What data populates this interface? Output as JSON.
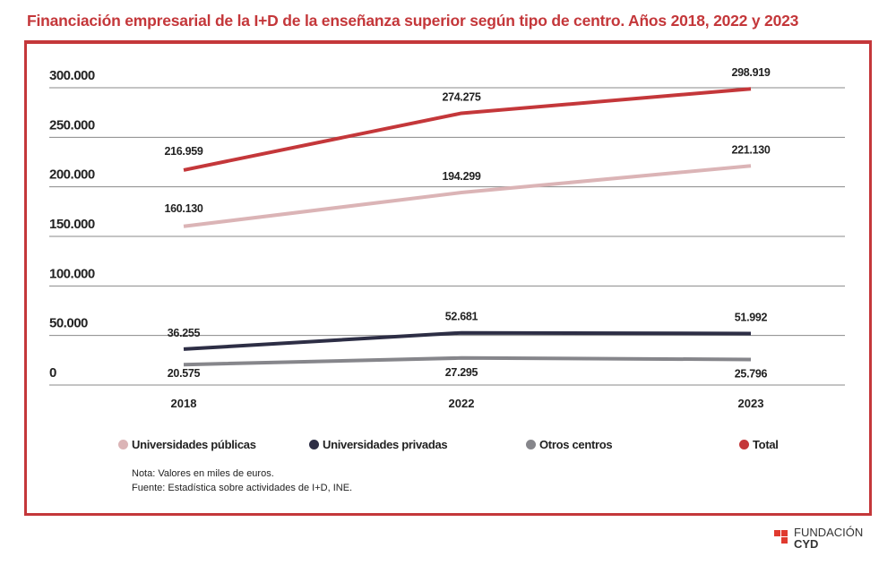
{
  "chart_data": {
    "type": "line",
    "title": "Financiación empresarial de la I+D de la  enseñanza superior según tipo de centro. Años 2018, 2022 y 2023",
    "categories": [
      "2018",
      "2022",
      "2023"
    ],
    "ylim": [
      0,
      300000
    ],
    "yticks": [
      "0",
      "50.000",
      "100.000",
      "150.000",
      "200.000",
      "250.000",
      "300.000"
    ],
    "grid": true,
    "legend_position": "bottom",
    "series": [
      {
        "name": "Universidades públicas",
        "color": "#dbb4b6",
        "values": [
          160130,
          194299,
          221130
        ],
        "labels": [
          "160.130",
          "194.299",
          "221.130"
        ]
      },
      {
        "name": "Universidades privadas",
        "color": "#2d2e45",
        "values": [
          36255,
          52681,
          51992
        ],
        "labels": [
          "36.255",
          "52.681",
          "51.992"
        ]
      },
      {
        "name": "Otros centros",
        "color": "#86868b",
        "values": [
          20575,
          27295,
          25796
        ],
        "labels": [
          "20.575",
          "27.295",
          "25.796"
        ]
      },
      {
        "name": "Total",
        "color": "#c4373a",
        "values": [
          216959,
          274275,
          298919
        ],
        "labels": [
          "216.959",
          "274.275",
          "298.919"
        ]
      }
    ]
  },
  "notes": [
    "Nota: Valores en miles de euros.",
    "Fuente: Estadística sobre actividades de I+D, INE."
  ],
  "logo": {
    "line1": "FUNDACIÓN",
    "line2": "CYD",
    "color": "#e03a2f"
  }
}
